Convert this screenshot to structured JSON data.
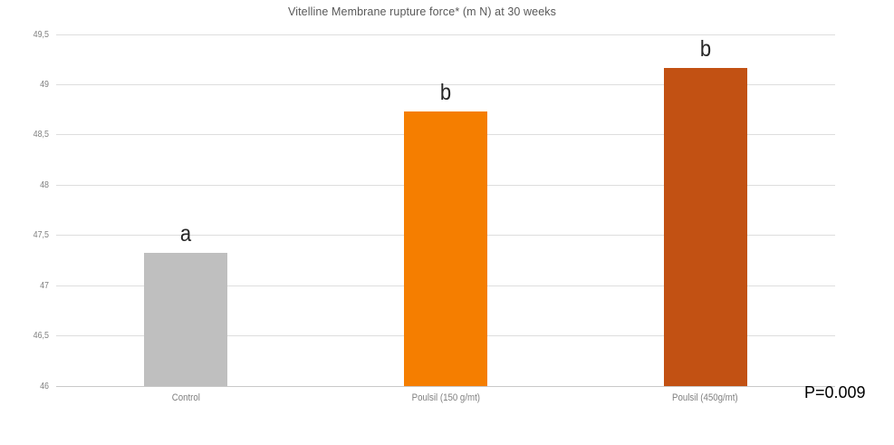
{
  "chart_data": {
    "type": "bar",
    "title": "Vitelline Membrane rupture force* (m N) at 30 weeks",
    "categories": [
      "Control",
      "Poulsil (150 g/mt)",
      "Poulsil (450g/mt)"
    ],
    "values": [
      47.33,
      48.73,
      49.17
    ],
    "sig_letters": [
      "a",
      "b",
      "b"
    ],
    "bar_colors": [
      "#BFBFBF",
      "#F57E00",
      "#C25113"
    ],
    "ylim": [
      46,
      49.5
    ],
    "yticks": [
      {
        "value": 46,
        "label": "46"
      },
      {
        "value": 46.5,
        "label": "46,5"
      },
      {
        "value": 47,
        "label": "47"
      },
      {
        "value": 47.5,
        "label": "47,5"
      },
      {
        "value": 48,
        "label": "48"
      },
      {
        "value": 48.5,
        "label": "48,5"
      },
      {
        "value": 49,
        "label": "49"
      },
      {
        "value": 49.5,
        "label": "49,5"
      }
    ],
    "grid": true,
    "legend": "none",
    "annotation": "P=0.009",
    "decimal_separator": ",",
    "xlabel": "",
    "ylabel": "",
    "colors": {
      "gridline": "#DEDEDE",
      "axis_line": "#C9C9C9",
      "title_text": "#595959",
      "tick_text": "#7F7F7F",
      "sig_letter_text": "#262626",
      "annotation_text": "#000000"
    }
  }
}
